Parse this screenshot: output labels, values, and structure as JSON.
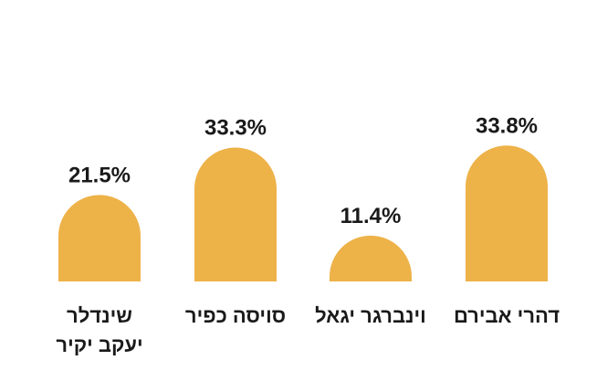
{
  "chart_data": {
    "type": "bar",
    "categories": [
      "שינדלר יעקב יקיר",
      "סויסה כפיר",
      "וינברגר יגאל",
      "דהרי אבירם"
    ],
    "category_lines": [
      [
        "שינדלר",
        "יעקב יקיר"
      ],
      [
        "סויסה כפיר"
      ],
      [
        "וינברגר יגאל"
      ],
      [
        "דהרי אבירם"
      ]
    ],
    "values": [
      21.5,
      33.3,
      11.4,
      33.8
    ],
    "value_labels": [
      "21.5%",
      "33.3%",
      "11.4%",
      "33.8%"
    ],
    "title": "",
    "xlabel": "",
    "ylabel": "",
    "ylim": [
      0,
      40
    ],
    "grid": false,
    "bar_color": "#EDB248"
  }
}
